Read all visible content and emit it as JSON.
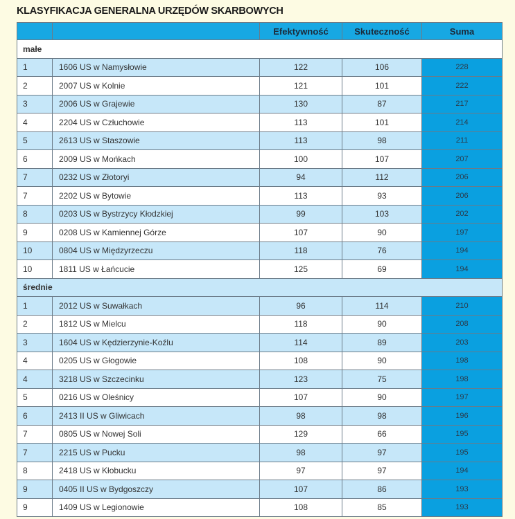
{
  "title": "KLASYFIKACJA GENERALNA URZĘDÓW SKARBOWYCH",
  "colors": {
    "header": "#17a8e3",
    "row_alt": "#c6e7f9",
    "suma": "#0aa0e0",
    "background": "#fdfbe3"
  },
  "columns": [
    "",
    "",
    "Efektywność",
    "Skuteczność",
    "Suma"
  ],
  "sections": [
    {
      "label": "małe",
      "rows": [
        [
          "1",
          "1606 US w Namysłowie",
          "122",
          "106",
          "228"
        ],
        [
          "2",
          "2007 US w Kolnie",
          "121",
          "101",
          "222"
        ],
        [
          "3",
          "2006 US w Grajewie",
          "130",
          "87",
          "217"
        ],
        [
          "4",
          "2204 US w Człuchowie",
          "113",
          "101",
          "214"
        ],
        [
          "5",
          "2613 US w Staszowie",
          "113",
          "98",
          "211"
        ],
        [
          "6",
          "2009 US w Mońkach",
          "100",
          "107",
          "207"
        ],
        [
          "7",
          "0232 US w Złotoryi",
          "94",
          "112",
          "206"
        ],
        [
          "7",
          "2202 US w Bytowie",
          "113",
          "93",
          "206"
        ],
        [
          "8",
          "0203 US w Bystrzycy Kłodzkiej",
          "99",
          "103",
          "202"
        ],
        [
          "9",
          "0208 US w Kamiennej Górze",
          "107",
          "90",
          "197"
        ],
        [
          "10",
          "0804 US w Międzyrzeczu",
          "118",
          "76",
          "194"
        ],
        [
          "10",
          "1811 US w Łańcucie",
          "125",
          "69",
          "194"
        ]
      ]
    },
    {
      "label": "średnie",
      "rows": [
        [
          "1",
          "2012 US w Suwałkach",
          "96",
          "114",
          "210"
        ],
        [
          "2",
          "1812 US w Mielcu",
          "118",
          "90",
          "208"
        ],
        [
          "3",
          "1604 US w Kędzierzynie-Koźlu",
          "114",
          "89",
          "203"
        ],
        [
          "4",
          "0205 US w Głogowie",
          "108",
          "90",
          "198"
        ],
        [
          "4",
          "3218 US w Szczecinku",
          "123",
          "75",
          "198"
        ],
        [
          "5",
          "0216 US w Oleśnicy",
          "107",
          "90",
          "197"
        ],
        [
          "6",
          "2413 II US w Gliwicach",
          "98",
          "98",
          "196"
        ],
        [
          "7",
          "0805 US w Nowej Soli",
          "129",
          "66",
          "195"
        ],
        [
          "7",
          "2215 US w Pucku",
          "98",
          "97",
          "195"
        ],
        [
          "8",
          "2418 US w Kłobucku",
          "97",
          "97",
          "194"
        ],
        [
          "9",
          "0405 II US w Bydgoszczy",
          "107",
          "86",
          "193"
        ],
        [
          "9",
          "1409 US w Legionowie",
          "108",
          "85",
          "193"
        ]
      ]
    }
  ]
}
